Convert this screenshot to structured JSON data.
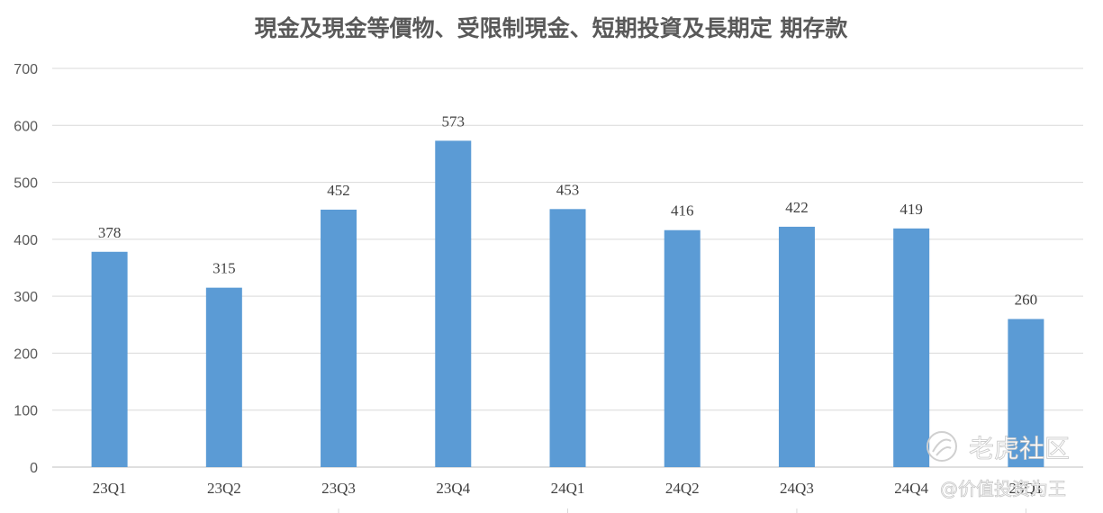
{
  "chart_data": {
    "type": "bar",
    "title": "現金及現金等價物、受限制現金、短期投資及長期定 期存款",
    "categories": [
      "23Q1",
      "23Q2",
      "23Q3",
      "23Q4",
      "24Q1",
      "24Q2",
      "24Q3",
      "24Q4",
      "25Q1"
    ],
    "values": [
      378,
      315,
      452,
      573,
      453,
      416,
      422,
      419,
      260
    ],
    "data_labels": [
      "378",
      "315",
      "452",
      "573",
      "453",
      "416",
      "422",
      "419",
      "260"
    ],
    "xlabel": "",
    "ylabel": "",
    "ylim": [
      0,
      700
    ],
    "yticks": [
      0,
      100,
      200,
      300,
      400,
      500,
      600,
      700
    ],
    "grid": true,
    "legend": "none",
    "bar_color": "#5b9bd5"
  },
  "watermark": {
    "brand": "老虎社区",
    "author": "@价值投资为王",
    "icon": "tiger-community-logo-icon"
  }
}
